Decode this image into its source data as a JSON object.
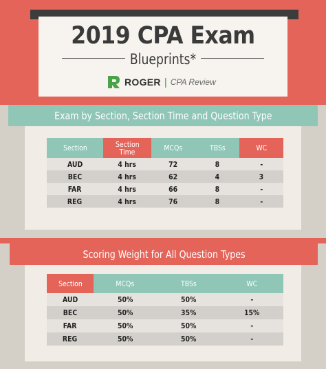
{
  "header": {
    "title": "2019 CPA Exam",
    "subtitle": "Blueprints*",
    "brand": "ROGER",
    "brand_separator": "|",
    "brand_sub": "CPA Review"
  },
  "colors": {
    "accent_red": "#e4645a",
    "accent_teal": "#8fc6b6",
    "brand_green": "#4aa24a"
  },
  "table1": {
    "title": "Exam by Section, Section Time and Question Type",
    "headers": [
      "Section",
      "Section Time",
      "MCQs",
      "TBSs",
      "WC"
    ],
    "rows": [
      [
        "AUD",
        "4 hrs",
        "72",
        "8",
        "-"
      ],
      [
        "BEC",
        "4 hrs",
        "62",
        "4",
        "3"
      ],
      [
        "FAR",
        "4 hrs",
        "66",
        "8",
        "-"
      ],
      [
        "REG",
        "4 hrs",
        "76",
        "8",
        "-"
      ]
    ]
  },
  "table2": {
    "title": "Scoring Weight for All Question Types",
    "headers": [
      "Section",
      "MCQs",
      "TBSs",
      "WC"
    ],
    "rows": [
      [
        "AUD",
        "50%",
        "50%",
        "-"
      ],
      [
        "BEC",
        "50%",
        "35%",
        "15%"
      ],
      [
        "FAR",
        "50%",
        "50%",
        "-"
      ],
      [
        "REG",
        "50%",
        "50%",
        "-"
      ]
    ]
  }
}
